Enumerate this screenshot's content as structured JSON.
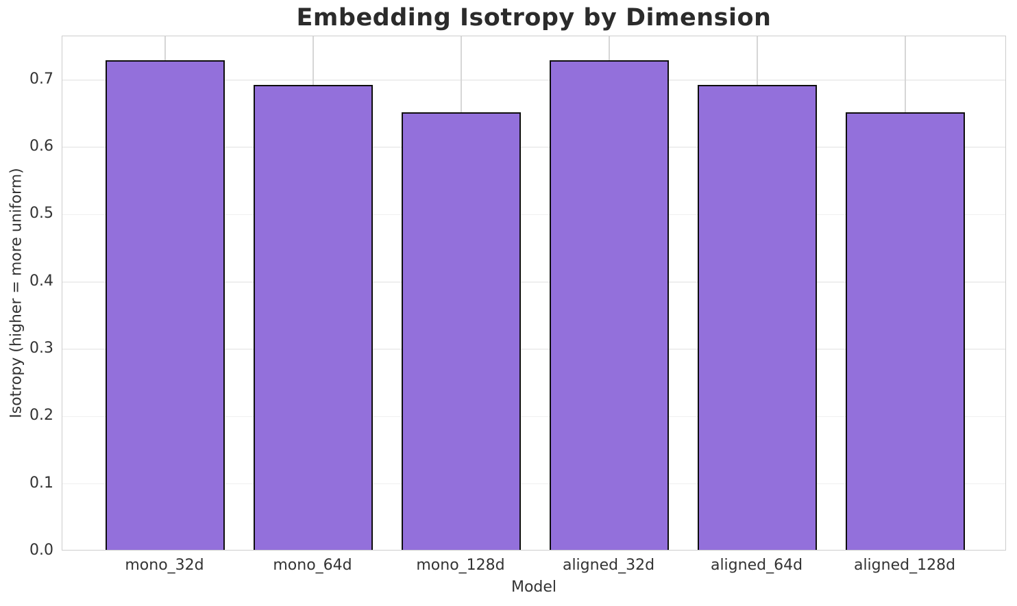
{
  "chart_data": {
    "type": "bar",
    "title": "Embedding Isotropy by Dimension",
    "xlabel": "Model",
    "ylabel": "Isotropy (higher = more uniform)",
    "categories": [
      "mono_32d",
      "mono_64d",
      "mono_128d",
      "aligned_32d",
      "aligned_64d",
      "aligned_128d"
    ],
    "values": [
      0.727,
      0.691,
      0.65,
      0.727,
      0.691,
      0.65
    ],
    "ytick_labels": [
      "0.0",
      "0.1",
      "0.2",
      "0.3",
      "0.4",
      "0.5",
      "0.6",
      "0.7"
    ],
    "ylim": [
      0,
      0.765
    ],
    "grid": true,
    "legend_position": "none",
    "bar_color": "#9370DB",
    "bar_edge_color": "#0d0d0d",
    "background_color": "#ffffff",
    "grid_color_horizontal": "#efefef",
    "grid_color_vertical": "#d6d6d6",
    "spine_color": "#cccccc",
    "text_color": "#333333",
    "title_color": "#2b2b2b"
  }
}
